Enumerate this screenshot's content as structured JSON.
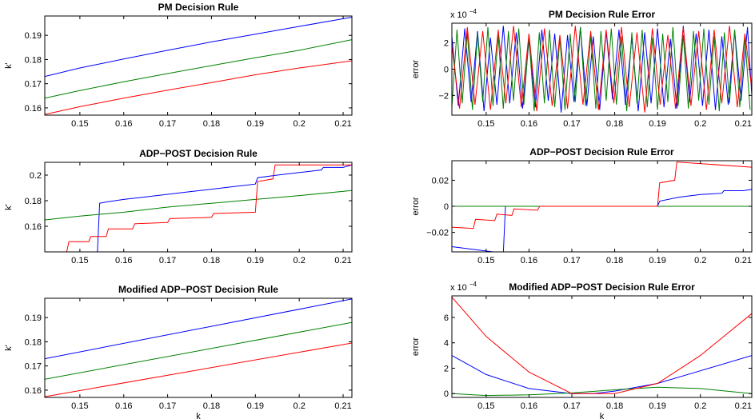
{
  "colors": {
    "series1": "#0000ff",
    "series2": "#008000",
    "series3": "#ff0000"
  },
  "chart_data": [
    {
      "type": "line",
      "title": "PM Decision Rule",
      "xlabel": "",
      "ylabel": "k'",
      "xlim": [
        0.142,
        0.212
      ],
      "ylim": [
        0.157,
        0.198
      ],
      "xticks": [
        "0.15",
        "0.16",
        "0.17",
        "0.18",
        "0.19",
        "0.2",
        "0.21"
      ],
      "yticks": [
        "0.16",
        "0.17",
        "0.18",
        "0.19"
      ],
      "exponent": "",
      "series": [
        {
          "color": "#0000ff",
          "x": [
            0.142,
            0.15,
            0.16,
            0.17,
            0.18,
            0.19,
            0.2,
            0.212
          ],
          "y": [
            0.173,
            0.1765,
            0.1802,
            0.1838,
            0.1873,
            0.1905,
            0.1937,
            0.1975
          ]
        },
        {
          "color": "#008000",
          "x": [
            0.142,
            0.15,
            0.16,
            0.17,
            0.18,
            0.19,
            0.2,
            0.212
          ],
          "y": [
            0.164,
            0.1672,
            0.1708,
            0.1742,
            0.1775,
            0.1807,
            0.1838,
            0.1882
          ]
        },
        {
          "color": "#ff0000",
          "x": [
            0.142,
            0.15,
            0.16,
            0.17,
            0.18,
            0.19,
            0.2,
            0.212
          ],
          "y": [
            0.1573,
            0.1605,
            0.164,
            0.1673,
            0.1705,
            0.1737,
            0.1765,
            0.1795
          ]
        }
      ]
    },
    {
      "type": "line",
      "title": "ADP−POST Decision Rule",
      "xlabel": "",
      "ylabel": "k'",
      "xlim": [
        0.142,
        0.212
      ],
      "ylim": [
        0.14,
        0.21
      ],
      "xticks": [
        "0.15",
        "0.16",
        "0.17",
        "0.18",
        "0.19",
        "0.2",
        "0.21"
      ],
      "yticks": [
        "0.16",
        "0.18",
        "0.2"
      ],
      "exponent": "",
      "series": [
        {
          "color": "#0000ff",
          "x": [
            0.142,
            0.154,
            0.1545,
            0.156,
            0.16,
            0.165,
            0.17,
            0.175,
            0.18,
            0.185,
            0.19,
            0.1905,
            0.195,
            0.2,
            0.205,
            0.2055,
            0.21,
            0.212
          ],
          "y": [
            0.14,
            0.14,
            0.178,
            0.179,
            0.181,
            0.183,
            0.185,
            0.187,
            0.189,
            0.191,
            0.193,
            0.198,
            0.2,
            0.202,
            0.204,
            0.206,
            0.206,
            0.208
          ]
        },
        {
          "color": "#008000",
          "x": [
            0.142,
            0.15,
            0.16,
            0.17,
            0.18,
            0.19,
            0.2,
            0.212
          ],
          "y": [
            0.165,
            0.168,
            0.171,
            0.175,
            0.178,
            0.181,
            0.184,
            0.188
          ]
        },
        {
          "color": "#ff0000",
          "x": [
            0.142,
            0.147,
            0.1475,
            0.152,
            0.1525,
            0.156,
            0.1565,
            0.162,
            0.1625,
            0.17,
            0.1705,
            0.18,
            0.1805,
            0.19,
            0.1905,
            0.194,
            0.1945,
            0.212
          ],
          "y": [
            0.14,
            0.14,
            0.148,
            0.148,
            0.152,
            0.152,
            0.158,
            0.158,
            0.162,
            0.163,
            0.166,
            0.167,
            0.17,
            0.171,
            0.195,
            0.197,
            0.208,
            0.208
          ]
        }
      ]
    },
    {
      "type": "line",
      "title": "Modified ADP−POST Decision Rule",
      "xlabel": "k",
      "ylabel": "k'",
      "xlim": [
        0.142,
        0.212
      ],
      "ylim": [
        0.157,
        0.198
      ],
      "xticks": [
        "0.15",
        "0.16",
        "0.17",
        "0.18",
        "0.19",
        "0.2",
        "0.21"
      ],
      "yticks": [
        "0.16",
        "0.17",
        "0.18",
        "0.19"
      ],
      "exponent": "",
      "series": [
        {
          "color": "#0000ff",
          "x": [
            0.142,
            0.212
          ],
          "y": [
            0.173,
            0.1977
          ]
        },
        {
          "color": "#008000",
          "x": [
            0.142,
            0.212
          ],
          "y": [
            0.1645,
            0.188
          ]
        },
        {
          "color": "#ff0000",
          "x": [
            0.142,
            0.212
          ],
          "y": [
            0.1573,
            0.1795
          ]
        }
      ]
    },
    {
      "type": "line",
      "title": "PM Decision Rule Error",
      "xlabel": "",
      "ylabel": "error",
      "xlim": [
        0.142,
        0.212
      ],
      "ylim": [
        -3.5,
        3.5
      ],
      "xticks": [
        "0.15",
        "0.16",
        "0.17",
        "0.18",
        "0.19",
        "0.2",
        "0.21"
      ],
      "yticks": [
        "−2",
        "0",
        "2"
      ],
      "exponent": "x 10",
      "exponent_power": "−4",
      "series": [
        {
          "color": "#0000ff",
          "x": [
            0.142,
            0.1435,
            0.145,
            0.1465,
            0.148,
            0.1495,
            0.151,
            0.1525,
            0.154,
            0.1555,
            0.157,
            0.1585,
            0.16,
            0.1615,
            0.163,
            0.1645,
            0.166,
            0.1675,
            0.169,
            0.1705,
            0.172,
            0.1735,
            0.175,
            0.1765,
            0.178,
            0.1795,
            0.181,
            0.1825,
            0.184,
            0.1855,
            0.187,
            0.1885,
            0.19,
            0.1915,
            0.193,
            0.1945,
            0.196,
            0.1975,
            0.199,
            0.2005,
            0.202,
            0.2035,
            0.205,
            0.2065,
            0.208,
            0.2095,
            0.211,
            0.212
          ],
          "y": [
            2.5,
            -2.8,
            3.1,
            -2.5,
            2.9,
            -3.2,
            2.4,
            -2.7,
            3.3,
            -2.6,
            2.8,
            -3.0,
            2.2,
            -2.9,
            3.0,
            -2.4,
            2.7,
            -3.3,
            2.6,
            -2.5,
            3.2,
            -2.8,
            2.5,
            -3.1,
            2.9,
            -2.3,
            3.0,
            -2.7,
            2.4,
            -3.2,
            2.8,
            -2.6,
            3.1,
            -2.9,
            2.3,
            -3.0,
            3.3,
            -2.5,
            2.7,
            -2.8,
            3.0,
            -3.1,
            2.5,
            -2.7,
            2.9,
            -2.4,
            3.2,
            -2.0
          ]
        },
        {
          "color": "#008000",
          "x": [
            0.142,
            0.1432,
            0.1444,
            0.1456,
            0.1468,
            0.148,
            0.1492,
            0.1504,
            0.1516,
            0.1528,
            0.154,
            0.1552,
            0.1564,
            0.1576,
            0.1588,
            0.16,
            0.1612,
            0.1624,
            0.1636,
            0.1648,
            0.166,
            0.1672,
            0.1684,
            0.1696,
            0.1708,
            0.172,
            0.1732,
            0.1744,
            0.1756,
            0.1768,
            0.178,
            0.1792,
            0.1804,
            0.1816,
            0.1828,
            0.184,
            0.1852,
            0.1864,
            0.1876,
            0.1888,
            0.19,
            0.1912,
            0.1924,
            0.1936,
            0.1948,
            0.196,
            0.1972,
            0.1984,
            0.1996,
            0.2008,
            0.202,
            0.2032,
            0.2044,
            0.2056,
            0.2068,
            0.208,
            0.2092,
            0.2104,
            0.2116
          ],
          "y": [
            -2.9,
            3.0,
            -2.6,
            2.8,
            -3.1,
            2.7,
            -2.5,
            3.2,
            -2.8,
            2.6,
            -3.0,
            2.9,
            -2.4,
            3.1,
            -2.7,
            2.5,
            -3.2,
            2.8,
            -2.6,
            3.0,
            -2.9,
            2.4,
            -3.1,
            2.7,
            -2.5,
            3.2,
            -2.8,
            2.6,
            -3.0,
            2.9,
            -2.4,
            3.1,
            -2.7,
            2.5,
            -3.2,
            2.8,
            -2.6,
            3.0,
            -2.9,
            2.4,
            -3.1,
            2.7,
            -2.5,
            3.2,
            -2.8,
            2.6,
            -3.0,
            2.9,
            -2.4,
            3.1,
            -2.7,
            2.5,
            -3.2,
            2.8,
            -2.6,
            3.0,
            -2.9,
            2.4,
            -3.1
          ]
        },
        {
          "color": "#ff0000",
          "x": [
            0.142,
            0.1438,
            0.1456,
            0.1474,
            0.1492,
            0.151,
            0.1528,
            0.1546,
            0.1564,
            0.1582,
            0.16,
            0.1618,
            0.1636,
            0.1654,
            0.1672,
            0.169,
            0.1708,
            0.1726,
            0.1744,
            0.1762,
            0.178,
            0.1798,
            0.1816,
            0.1834,
            0.1852,
            0.187,
            0.1888,
            0.1906,
            0.1924,
            0.1942,
            0.196,
            0.1978,
            0.1996,
            0.2014,
            0.2032,
            0.205,
            0.2068,
            0.2086,
            0.2104,
            0.212
          ],
          "y": [
            1.8,
            -3.0,
            3.2,
            -2.7,
            2.9,
            -3.1,
            3.0,
            -2.6,
            3.3,
            -2.9,
            2.7,
            -3.2,
            3.1,
            -2.8,
            2.6,
            -3.0,
            3.3,
            -2.7,
            2.9,
            -3.1,
            3.0,
            -2.6,
            3.2,
            -2.9,
            2.8,
            -3.3,
            3.1,
            -2.7,
            2.6,
            -3.0,
            3.2,
            -2.8,
            2.9,
            -3.1,
            3.0,
            -2.6,
            3.3,
            -2.9,
            2.7,
            -1.5
          ]
        }
      ]
    },
    {
      "type": "line",
      "title": "ADP−POST Decision Rule Error",
      "xlabel": "",
      "ylabel": "error",
      "xlim": [
        0.142,
        0.212
      ],
      "ylim": [
        -0.035,
        0.035
      ],
      "xticks": [
        "0.15",
        "0.16",
        "0.17",
        "0.18",
        "0.19",
        "0.2",
        "0.21"
      ],
      "yticks": [
        "−0.02",
        "0",
        "0.02"
      ],
      "exponent": "",
      "series": [
        {
          "color": "#0000ff",
          "x": [
            0.142,
            0.154,
            0.1545,
            0.156,
            0.16,
            0.165,
            0.17,
            0.175,
            0.18,
            0.185,
            0.19,
            0.1905,
            0.195,
            0.2,
            0.205,
            0.2055,
            0.21,
            0.212
          ],
          "y": [
            -0.031,
            -0.036,
            0.0,
            0.0,
            0.0,
            0.0,
            0.0,
            0.0,
            0.0,
            0.0,
            0.0,
            0.004,
            0.007,
            0.009,
            0.01,
            0.012,
            0.012,
            0.013
          ]
        },
        {
          "color": "#008000",
          "x": [
            0.142,
            0.212
          ],
          "y": [
            0.0,
            0.0
          ]
        },
        {
          "color": "#ff0000",
          "x": [
            0.142,
            0.147,
            0.1475,
            0.152,
            0.1525,
            0.156,
            0.1565,
            0.162,
            0.1625,
            0.17,
            0.1705,
            0.18,
            0.1805,
            0.19,
            0.1905,
            0.194,
            0.1945,
            0.212
          ],
          "y": [
            -0.016,
            -0.017,
            -0.01,
            -0.011,
            -0.006,
            -0.007,
            -0.002,
            -0.003,
            0.0,
            0.0,
            0.0,
            0.0,
            0.0,
            0.0,
            0.018,
            0.02,
            0.034,
            0.03
          ]
        }
      ]
    },
    {
      "type": "line",
      "title": "Modified ADP−POST Decision Rule Error",
      "xlabel": "k",
      "ylabel": "error",
      "xlim": [
        0.142,
        0.212
      ],
      "ylim": [
        -0.3,
        7.7
      ],
      "xticks": [
        "0.15",
        "0.16",
        "0.17",
        "0.18",
        "0.19",
        "0.2",
        "0.21"
      ],
      "yticks": [
        "0",
        "2",
        "4",
        "6"
      ],
      "exponent": "x 10",
      "exponent_power": "−4",
      "series": [
        {
          "color": "#0000ff",
          "x": [
            0.142,
            0.15,
            0.16,
            0.17,
            0.175,
            0.18,
            0.19,
            0.2,
            0.212
          ],
          "y": [
            3.0,
            1.5,
            0.4,
            0.0,
            0.0,
            0.2,
            0.8,
            1.8,
            3.0
          ]
        },
        {
          "color": "#008000",
          "x": [
            0.142,
            0.15,
            0.16,
            0.17,
            0.18,
            0.19,
            0.2,
            0.212
          ],
          "y": [
            0.0,
            -0.15,
            -0.1,
            0.05,
            0.3,
            0.5,
            0.4,
            0.0
          ]
        },
        {
          "color": "#ff0000",
          "x": [
            0.142,
            0.15,
            0.16,
            0.17,
            0.18,
            0.19,
            0.2,
            0.212
          ],
          "y": [
            7.6,
            4.5,
            1.7,
            0.0,
            0.0,
            0.8,
            3.0,
            6.3
          ]
        }
      ]
    }
  ]
}
